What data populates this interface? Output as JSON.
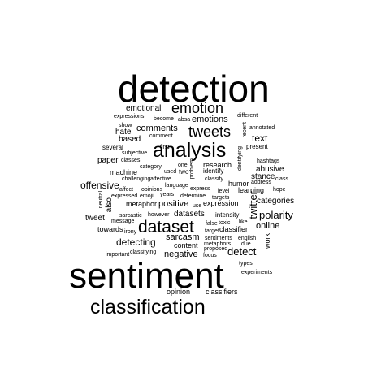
{
  "wordcloud": {
    "words": [
      {
        "text": "detection",
        "vertical": false
      },
      {
        "text": "sentiment",
        "vertical": false
      },
      {
        "text": "classification",
        "vertical": false
      },
      {
        "text": "analysis",
        "vertical": false
      },
      {
        "text": "dataset",
        "vertical": false
      },
      {
        "text": "emotion",
        "vertical": false
      },
      {
        "text": "tweets",
        "vertical": false
      },
      {
        "text": "emotions",
        "vertical": false
      },
      {
        "text": "comments",
        "vertical": false
      },
      {
        "text": "emotional",
        "vertical": false
      },
      {
        "text": "expressions",
        "vertical": false
      },
      {
        "text": "become",
        "vertical": false
      },
      {
        "text": "absa",
        "vertical": false
      },
      {
        "text": "different",
        "vertical": false
      },
      {
        "text": "show",
        "vertical": false
      },
      {
        "text": "hate",
        "vertical": false
      },
      {
        "text": "comment",
        "vertical": false
      },
      {
        "text": "recent",
        "vertical": true
      },
      {
        "text": "annotated",
        "vertical": false
      },
      {
        "text": "based",
        "vertical": false
      },
      {
        "text": "text",
        "vertical": false
      },
      {
        "text": "present",
        "vertical": false
      },
      {
        "text": "several",
        "vertical": false
      },
      {
        "text": "first",
        "vertical": false
      },
      {
        "text": "subjective",
        "vertical": false
      },
      {
        "text": "paper",
        "vertical": false
      },
      {
        "text": "classes",
        "vertical": false
      },
      {
        "text": "identifying",
        "vertical": true
      },
      {
        "text": "hashtags",
        "vertical": false
      },
      {
        "text": "category",
        "vertical": false
      },
      {
        "text": "one",
        "vertical": false
      },
      {
        "text": "problem",
        "vertical": true
      },
      {
        "text": "research",
        "vertical": false
      },
      {
        "text": "abusive",
        "vertical": false
      },
      {
        "text": "machine",
        "vertical": false
      },
      {
        "text": "used",
        "vertical": false
      },
      {
        "text": "two",
        "vertical": false
      },
      {
        "text": "identify",
        "vertical": false
      },
      {
        "text": "stance",
        "vertical": false
      },
      {
        "text": "class",
        "vertical": false
      },
      {
        "text": "challenging",
        "vertical": false
      },
      {
        "text": "affective",
        "vertical": false
      },
      {
        "text": "classify",
        "vertical": false
      },
      {
        "text": "humor",
        "vertical": false
      },
      {
        "text": "address",
        "vertical": false
      },
      {
        "text": "offensive",
        "vertical": false
      },
      {
        "text": "language",
        "vertical": false
      },
      {
        "text": "express",
        "vertical": false
      },
      {
        "text": "learning",
        "vertical": false
      },
      {
        "text": "hope",
        "vertical": false
      },
      {
        "text": "neutral",
        "vertical": true
      },
      {
        "text": "affect",
        "vertical": false
      },
      {
        "text": "opinions",
        "vertical": false
      },
      {
        "text": "level",
        "vertical": false
      },
      {
        "text": "expressed",
        "vertical": false
      },
      {
        "text": "emoji",
        "vertical": false
      },
      {
        "text": "years",
        "vertical": false
      },
      {
        "text": "determine",
        "vertical": false
      },
      {
        "text": "targets",
        "vertical": false
      },
      {
        "text": "twitter",
        "vertical": true
      },
      {
        "text": "categories",
        "vertical": false
      },
      {
        "text": "also",
        "vertical": true
      },
      {
        "text": "metaphor",
        "vertical": false
      },
      {
        "text": "positive",
        "vertical": false
      },
      {
        "text": "use",
        "vertical": false
      },
      {
        "text": "expression",
        "vertical": false
      },
      {
        "text": "polarity",
        "vertical": false
      },
      {
        "text": "tweet",
        "vertical": false
      },
      {
        "text": "sarcastic",
        "vertical": false
      },
      {
        "text": "however",
        "vertical": false
      },
      {
        "text": "datasets",
        "vertical": false
      },
      {
        "text": "intensity",
        "vertical": false
      },
      {
        "text": "message",
        "vertical": false
      },
      {
        "text": "false",
        "vertical": false
      },
      {
        "text": "toxic",
        "vertical": false
      },
      {
        "text": "like",
        "vertical": false
      },
      {
        "text": "online",
        "vertical": false
      },
      {
        "text": "towards",
        "vertical": false
      },
      {
        "text": "irony",
        "vertical": false
      },
      {
        "text": "target",
        "vertical": false
      },
      {
        "text": "classifier",
        "vertical": false
      },
      {
        "text": "sarcasm",
        "vertical": false
      },
      {
        "text": "sentiments",
        "vertical": false
      },
      {
        "text": "english",
        "vertical": false
      },
      {
        "text": "work",
        "vertical": true
      },
      {
        "text": "detecting",
        "vertical": false
      },
      {
        "text": "content",
        "vertical": false
      },
      {
        "text": "metaphors",
        "vertical": false
      },
      {
        "text": "proposed",
        "vertical": false
      },
      {
        "text": "due",
        "vertical": false
      },
      {
        "text": "detect",
        "vertical": false
      },
      {
        "text": "important",
        "vertical": false
      },
      {
        "text": "classifying",
        "vertical": false
      },
      {
        "text": "negative",
        "vertical": false
      },
      {
        "text": "focus",
        "vertical": false
      },
      {
        "text": "types",
        "vertical": false
      },
      {
        "text": "experiments",
        "vertical": false
      },
      {
        "text": "opinion",
        "vertical": false
      },
      {
        "text": "classifiers",
        "vertical": false
      }
    ]
  }
}
